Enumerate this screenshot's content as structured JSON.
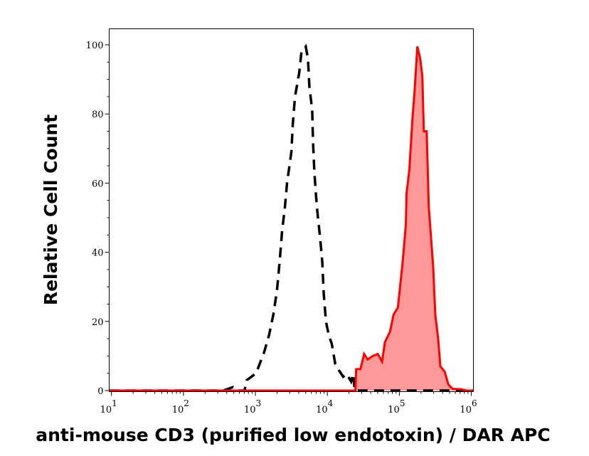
{
  "chart_data": {
    "type": "area",
    "title": "",
    "xlabel": "anti-mouse CD3 (purified low endotoxin) / DAR APC",
    "ylabel": "Relative Cell Count",
    "xscale": "log",
    "xlim": [
      9.3,
      1070000
    ],
    "ylim": [
      0,
      105
    ],
    "grid": false,
    "x_tick_labels": [
      {
        "value": 10,
        "base": "10",
        "exp": "1"
      },
      {
        "value": 100,
        "base": "10",
        "exp": "2"
      },
      {
        "value": 1000,
        "base": "10",
        "exp": "3"
      },
      {
        "value": 10000,
        "base": "10",
        "exp": "4"
      },
      {
        "value": 100000,
        "base": "10",
        "exp": "5"
      },
      {
        "value": 1000000,
        "base": "10",
        "exp": "6"
      }
    ],
    "y_ticks": [
      0,
      20,
      40,
      60,
      80,
      100
    ],
    "series": [
      {
        "style": "dashed-line",
        "color": "#000000",
        "log10_x": [
          0.97,
          2.55,
          2.62,
          2.69,
          2.75,
          2.85,
          2.88,
          3.01,
          3.12,
          3.19,
          3.25,
          3.3,
          3.34,
          3.37,
          3.41,
          3.44,
          3.5,
          3.52,
          3.55,
          3.61,
          3.64,
          3.7,
          3.73,
          3.75,
          3.79,
          3.8,
          3.82,
          3.84,
          3.86,
          3.9,
          3.93,
          3.95,
          3.98,
          4.02,
          4.06,
          4.11,
          4.15,
          4.22,
          4.27,
          4.33,
          4.36,
          4.38,
          6.03
        ],
        "y": [
          0,
          0,
          0.5,
          1,
          0,
          0,
          3,
          5,
          11,
          16,
          22,
          29,
          38,
          46,
          53,
          60,
          69,
          77,
          85,
          92,
          98,
          99.5,
          96,
          88,
          81,
          72,
          63,
          57,
          52,
          44,
          37,
          28,
          20,
          16,
          13.6,
          7.7,
          6.2,
          4,
          4.8,
          2.6,
          4.8,
          0,
          0
        ]
      },
      {
        "style": "filled",
        "color": "#ff0000",
        "fill": "#ff9999",
        "log10_x": [
          0.97,
          4.39,
          4.4,
          4.46,
          4.51,
          4.56,
          4.63,
          4.7,
          4.76,
          4.8,
          4.87,
          4.92,
          4.98,
          5.01,
          5.05,
          5.09,
          5.1,
          5.14,
          5.18,
          5.21,
          5.25,
          5.29,
          5.32,
          5.34,
          5.38,
          5.41,
          5.47,
          5.5,
          5.54,
          5.57,
          5.63,
          5.68,
          5.74,
          5.86,
          5.93,
          6.03
        ],
        "y": [
          0,
          0,
          6.2,
          6.2,
          10.6,
          9,
          10,
          10.6,
          8.4,
          14,
          17,
          22,
          24,
          30,
          38,
          48,
          57,
          64,
          78,
          86,
          99.5,
          96,
          91,
          75,
          75,
          53,
          36,
          22,
          15,
          7,
          5.5,
          1.8,
          0.5,
          0.4,
          0,
          0
        ]
      }
    ]
  }
}
